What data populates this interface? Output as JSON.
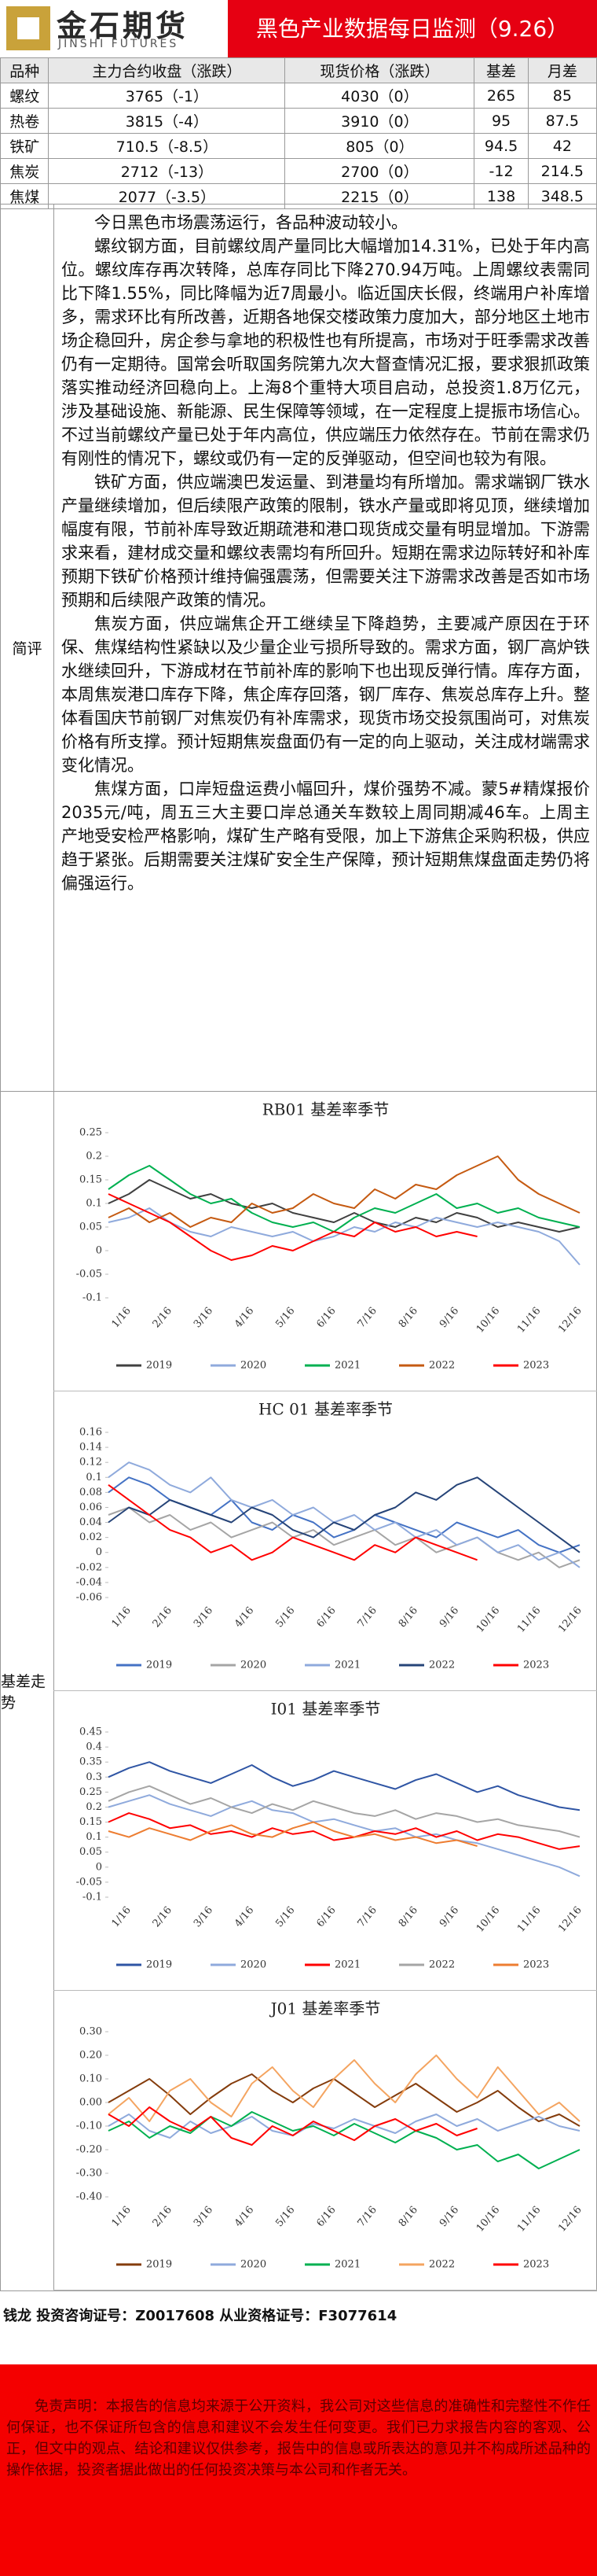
{
  "header": {
    "logo_cn": "金石期货",
    "logo_en": "JINSHI FUTURES",
    "title": "黑色产业数据每日监测（9.26）"
  },
  "table": {
    "headers": [
      "品种",
      "主力合约收盘（涨跌）",
      "现货价格（涨跌）",
      "基差",
      "月差"
    ],
    "rows": [
      [
        "螺纹",
        "3765（-1）",
        "4030（0）",
        "265",
        "85"
      ],
      [
        "热卷",
        "3815（-4）",
        "3910（0）",
        "95",
        "87.5"
      ],
      [
        "铁矿",
        "710.5（-8.5）",
        "805（0）",
        "94.5",
        "42"
      ],
      [
        "焦炭",
        "2712（-13）",
        "2700（0）",
        "-12",
        "214.5"
      ],
      [
        "焦煤",
        "2077（-3.5）",
        "2215（0）",
        "138",
        "348.5"
      ]
    ]
  },
  "commentary": {
    "label": "简评",
    "paragraphs": [
      "今日黑色市场震荡运行，各品种波动较小。",
      "螺纹钢方面，目前螺纹周产量同比大幅增加14.31%，已处于年内高位。螺纹库存再次转降，总库存同比下降270.94万吨。上周螺纹表需同比下降1.55%，同比降幅为近7周最小。临近国庆长假，终端用户补库增多，需求环比有所改善，近期各地保交楼政策力度加大，部分地区土地市场企稳回升，房企参与拿地的积极性也有所提高，市场对于旺季需求改善仍有一定期待。国常会听取国务院第九次大督查情况汇报，要求狠抓政策落实推动经济回稳向上。上海8个重特大项目启动，总投资1.8万亿元，涉及基础设施、新能源、民生保障等领域，在一定程度上提振市场信心。不过当前螺纹产量已处于年内高位，供应端压力依然存在。节前在需求仍有刚性的情况下，螺纹或仍有一定的反弹驱动，但空间也较为有限。",
      "铁矿方面，供应端澳巴发运量、到港量均有所增加。需求端钢厂铁水产量继续增加，但后续限产政策的限制，铁水产量或即将见顶，继续增加幅度有限，节前补库导致近期疏港和港口现货成交量有明显增加。下游需求来看，建材成交量和螺纹表需均有所回升。短期在需求边际转好和补库预期下铁矿价格预计维持偏强震荡，但需要关注下游需求改善是否如市场预期和后续限产政策的情况。",
      "焦炭方面，供应端焦企开工继续呈下降趋势，主要减产原因在于环保、焦煤结构性紧缺以及少量企业亏损所导致的。需求方面，钢厂高炉铁水继续回升，下游成材在节前补库的影响下也出现反弹行情。库存方面，本周焦炭港口库存下降，焦企库存回落，钢厂库存、焦炭总库存上升。整体看国庆节前钢厂对焦炭仍有补库需求，现货市场交投氛围尚可，对焦炭价格有所支撑。预计短期焦炭盘面仍有一定的向上驱动，关注成材端需求变化情况。",
      "焦煤方面，口岸短盘运费小幅回升，煤价强势不减。蒙5#精煤报价2035元/吨，周五三大主要口岸总通关车数较上周同期减46车。上周主产地受安检严格影响，煤矿生产略有受限，加上下游焦企采购积极，供应趋于紧张。后期需要关注煤矿安全生产保障，预计短期焦煤盘面走势仍将偏强运行。"
    ]
  },
  "basis_label": "基差走势",
  "chart_data": [
    {
      "type": "line",
      "title": "RB01 基差率季节",
      "categories": [
        null,
        "1/16",
        null,
        "2/16",
        null,
        "3/16",
        null,
        "4/16",
        null,
        "5/16",
        null,
        "6/16",
        null,
        "7/16",
        null,
        "8/16",
        null,
        "9/16",
        null,
        "10/16",
        null,
        "11/16",
        null,
        "12/16"
      ],
      "ylim": [
        -0.1,
        0.25
      ],
      "yticks": [
        -0.1,
        -0.05,
        0,
        0.05,
        0.1,
        0.15,
        0.2,
        0.25
      ],
      "series": [
        {
          "name": "2019",
          "color": "#404040",
          "values": [
            0.1,
            0.12,
            0.15,
            0.13,
            0.11,
            0.12,
            0.1,
            0.09,
            0.1,
            0.08,
            0.07,
            0.06,
            0.08,
            0.06,
            0.05,
            0.07,
            0.06,
            0.08,
            0.07,
            0.05,
            0.06,
            0.05,
            0.04,
            0.05
          ]
        },
        {
          "name": "2020",
          "color": "#8faadc",
          "values": [
            0.06,
            0.07,
            0.09,
            0.06,
            0.04,
            0.03,
            0.05,
            0.04,
            0.03,
            0.04,
            0.02,
            0.03,
            0.05,
            0.04,
            0.06,
            0.05,
            0.07,
            0.06,
            0.05,
            0.06,
            0.05,
            0.04,
            0.02,
            -0.03
          ]
        },
        {
          "name": "2021",
          "color": "#00b050",
          "values": [
            0.13,
            0.16,
            0.18,
            0.15,
            0.12,
            0.1,
            0.11,
            0.08,
            0.06,
            0.05,
            0.06,
            0.04,
            0.07,
            0.09,
            0.08,
            0.1,
            0.12,
            0.09,
            0.1,
            0.08,
            0.09,
            0.07,
            0.06,
            0.05
          ]
        },
        {
          "name": "2022",
          "color": "#c55a11",
          "values": [
            0.07,
            0.09,
            0.06,
            0.08,
            0.05,
            0.07,
            0.06,
            0.1,
            0.08,
            0.09,
            0.12,
            0.1,
            0.09,
            0.13,
            0.11,
            0.14,
            0.13,
            0.16,
            0.18,
            0.2,
            0.15,
            0.12,
            0.1,
            0.08
          ]
        },
        {
          "name": "2023",
          "color": "#ff0000",
          "values": [
            0.12,
            0.1,
            0.08,
            0.06,
            0.03,
            0.0,
            -0.02,
            -0.01,
            0.01,
            0.0,
            0.02,
            0.04,
            0.03,
            0.06,
            0.04,
            0.05,
            0.03,
            0.04,
            0.03,
            null,
            null,
            null,
            null,
            null
          ]
        }
      ]
    },
    {
      "type": "line",
      "title": "HC 01 基差率季节",
      "categories": [
        null,
        "1/16",
        null,
        "2/16",
        null,
        "3/16",
        null,
        "4/16",
        null,
        "5/16",
        null,
        "6/16",
        null,
        "7/16",
        null,
        "8/16",
        null,
        "9/16",
        null,
        "10/16",
        null,
        "11/16",
        null,
        "12/16"
      ],
      "ylim": [
        -0.06,
        0.16
      ],
      "yticks": [
        -0.06,
        -0.04,
        -0.02,
        0,
        0.02,
        0.04,
        0.06,
        0.08,
        0.1,
        0.12,
        0.14,
        0.16
      ],
      "series": [
        {
          "name": "2019",
          "color": "#4472c4",
          "values": [
            0.08,
            0.1,
            0.09,
            0.07,
            0.06,
            0.05,
            0.07,
            0.04,
            0.03,
            0.05,
            0.04,
            0.02,
            0.03,
            0.05,
            0.04,
            0.03,
            0.02,
            0.04,
            0.03,
            0.02,
            0.03,
            0.01,
            0.0,
            0.01
          ]
        },
        {
          "name": "2020",
          "color": "#a5a5a5",
          "values": [
            0.05,
            0.06,
            0.04,
            0.05,
            0.03,
            0.04,
            0.02,
            0.03,
            0.04,
            0.02,
            0.03,
            0.01,
            0.02,
            0.03,
            0.01,
            0.02,
            0.0,
            0.01,
            0.02,
            0.0,
            -0.01,
            0.0,
            -0.02,
            -0.01
          ]
        },
        {
          "name": "2021",
          "color": "#8faadc",
          "values": [
            0.1,
            0.12,
            0.11,
            0.09,
            0.08,
            0.1,
            0.07,
            0.06,
            0.07,
            0.05,
            0.06,
            0.04,
            0.05,
            0.03,
            0.04,
            0.02,
            0.03,
            0.01,
            0.02,
            0.0,
            0.01,
            -0.01,
            0.0,
            -0.02
          ]
        },
        {
          "name": "2022",
          "color": "#264478",
          "values": [
            0.04,
            0.06,
            0.05,
            0.07,
            0.06,
            0.05,
            0.04,
            0.06,
            0.05,
            0.03,
            0.02,
            0.04,
            0.03,
            0.05,
            0.06,
            0.08,
            0.07,
            0.09,
            0.1,
            0.08,
            0.06,
            0.04,
            0.02,
            0.0
          ]
        },
        {
          "name": "2023",
          "color": "#ff0000",
          "values": [
            0.09,
            0.07,
            0.05,
            0.03,
            0.02,
            0.0,
            0.01,
            -0.01,
            0.0,
            0.02,
            0.01,
            0.0,
            -0.01,
            0.01,
            0.0,
            0.02,
            0.01,
            0.0,
            -0.01,
            null,
            null,
            null,
            null,
            null
          ]
        }
      ]
    },
    {
      "type": "line",
      "title": "I01 基差率季节",
      "categories": [
        null,
        "1/16",
        null,
        "2/16",
        null,
        "3/16",
        null,
        "4/16",
        null,
        "5/16",
        null,
        "6/16",
        null,
        "7/16",
        null,
        "8/16",
        null,
        "9/16",
        null,
        "10/16",
        null,
        "11/16",
        null,
        "12/16"
      ],
      "ylim": [
        -0.1,
        0.45
      ],
      "yticks": [
        -0.1,
        -0.05,
        0,
        0.05,
        0.1,
        0.15,
        0.2,
        0.25,
        0.3,
        0.35,
        0.4,
        0.45
      ],
      "series": [
        {
          "name": "2019",
          "color": "#2f55a4",
          "values": [
            0.3,
            0.33,
            0.35,
            0.32,
            0.3,
            0.28,
            0.31,
            0.34,
            0.3,
            0.27,
            0.29,
            0.32,
            0.3,
            0.28,
            0.26,
            0.29,
            0.31,
            0.28,
            0.25,
            0.27,
            0.24,
            0.22,
            0.2,
            0.19
          ]
        },
        {
          "name": "2020",
          "color": "#8faadc",
          "values": [
            0.2,
            0.22,
            0.24,
            0.21,
            0.19,
            0.17,
            0.2,
            0.22,
            0.19,
            0.18,
            0.15,
            0.16,
            0.14,
            0.12,
            0.13,
            0.1,
            0.11,
            0.09,
            0.08,
            0.06,
            0.04,
            0.02,
            0.0,
            -0.03
          ]
        },
        {
          "name": "2021",
          "color": "#ff0000",
          "values": [
            0.15,
            0.18,
            0.16,
            0.13,
            0.14,
            0.11,
            0.12,
            0.1,
            0.13,
            0.11,
            0.12,
            0.09,
            0.1,
            0.12,
            0.11,
            0.13,
            0.1,
            0.12,
            0.09,
            0.11,
            0.1,
            0.08,
            0.06,
            0.07
          ]
        },
        {
          "name": "2022",
          "color": "#a5a5a5",
          "values": [
            0.22,
            0.25,
            0.27,
            0.24,
            0.21,
            0.23,
            0.2,
            0.18,
            0.21,
            0.19,
            0.22,
            0.2,
            0.18,
            0.17,
            0.19,
            0.16,
            0.18,
            0.17,
            0.15,
            0.16,
            0.14,
            0.13,
            0.12,
            0.1
          ]
        },
        {
          "name": "2023",
          "color": "#ed7d31",
          "values": [
            0.12,
            0.1,
            0.13,
            0.11,
            0.09,
            0.12,
            0.14,
            0.11,
            0.1,
            0.13,
            0.15,
            0.12,
            0.1,
            0.11,
            0.09,
            0.1,
            0.08,
            0.09,
            0.07,
            null,
            null,
            null,
            null,
            null
          ]
        }
      ]
    },
    {
      "type": "line",
      "title": "J01 基差率季节",
      "categories": [
        null,
        "1/16",
        null,
        "2/16",
        null,
        "3/16",
        null,
        "4/16",
        null,
        "5/16",
        null,
        "6/16",
        null,
        "7/16",
        null,
        "8/16",
        null,
        "9/16",
        null,
        "10/16",
        null,
        "11/16",
        null,
        "12/16"
      ],
      "ylim": [
        -0.4,
        0.3
      ],
      "yticks": [
        {
          "value": -0.4,
          "label": "-0.40"
        },
        {
          "value": -0.3,
          "label": "-0.30"
        },
        {
          "value": -0.2,
          "label": "-0.20"
        },
        {
          "value": -0.1,
          "label": "-0.10"
        },
        {
          "value": 0,
          "label": "0.00"
        },
        {
          "value": 0.1,
          "label": "0.10"
        },
        {
          "value": 0.2,
          "label": "0.20"
        },
        {
          "value": 0.3,
          "label": "0.30"
        }
      ],
      "series": [
        {
          "name": "2019",
          "color": "#843c0c",
          "values": [
            0.0,
            0.05,
            0.1,
            0.03,
            -0.05,
            0.02,
            0.08,
            0.12,
            0.05,
            0.0,
            0.06,
            0.1,
            0.04,
            -0.02,
            0.03,
            0.08,
            0.02,
            -0.04,
            0.0,
            0.05,
            -0.02,
            -0.08,
            -0.05,
            -0.1
          ]
        },
        {
          "name": "2020",
          "color": "#8faadc",
          "values": [
            -0.1,
            -0.05,
            -0.12,
            -0.15,
            -0.08,
            -0.13,
            -0.1,
            -0.06,
            -0.12,
            -0.14,
            -0.09,
            -0.11,
            -0.07,
            -0.1,
            -0.13,
            -0.08,
            -0.05,
            -0.1,
            -0.07,
            -0.12,
            -0.09,
            -0.06,
            -0.1,
            -0.12
          ]
        },
        {
          "name": "2021",
          "color": "#00b050",
          "values": [
            -0.12,
            -0.08,
            -0.15,
            -0.1,
            -0.13,
            -0.06,
            -0.1,
            -0.04,
            -0.08,
            -0.12,
            -0.1,
            -0.14,
            -0.09,
            -0.13,
            -0.17,
            -0.12,
            -0.15,
            -0.2,
            -0.18,
            -0.25,
            -0.22,
            -0.28,
            -0.24,
            -0.2
          ]
        },
        {
          "name": "2022",
          "color": "#f4a460",
          "values": [
            -0.05,
            0.02,
            -0.08,
            0.05,
            0.1,
            0.0,
            -0.06,
            0.08,
            0.15,
            0.05,
            -0.02,
            0.1,
            0.18,
            0.08,
            0.0,
            0.12,
            0.2,
            0.1,
            0.02,
            0.15,
            0.05,
            -0.05,
            0.0,
            -0.08
          ]
        },
        {
          "name": "2023",
          "color": "#ff0000",
          "values": [
            -0.05,
            -0.1,
            -0.02,
            -0.08,
            -0.12,
            -0.06,
            -0.15,
            -0.18,
            -0.1,
            -0.14,
            -0.08,
            -0.12,
            -0.16,
            -0.1,
            -0.07,
            -0.12,
            -0.09,
            -0.14,
            -0.11,
            null,
            null,
            null,
            null,
            null
          ]
        }
      ]
    }
  ],
  "footer": "钱龙 投资咨询证号：Z0017608 从业资格证号：F3077614",
  "disclaimer": "免责声明：本报告的信息均来源于公开资料，我公司对这些信息的准确性和完整性不作任何保证，也不保证所包含的信息和建议不会发生任何变更。我们已力求报告内容的客观、公正，但文中的观点、结论和建议仅供参考，报告中的信息或所表达的意见并不构成所述品种的操作依据，投资者据此做出的任何投资决策与本公司和作者无关。"
}
